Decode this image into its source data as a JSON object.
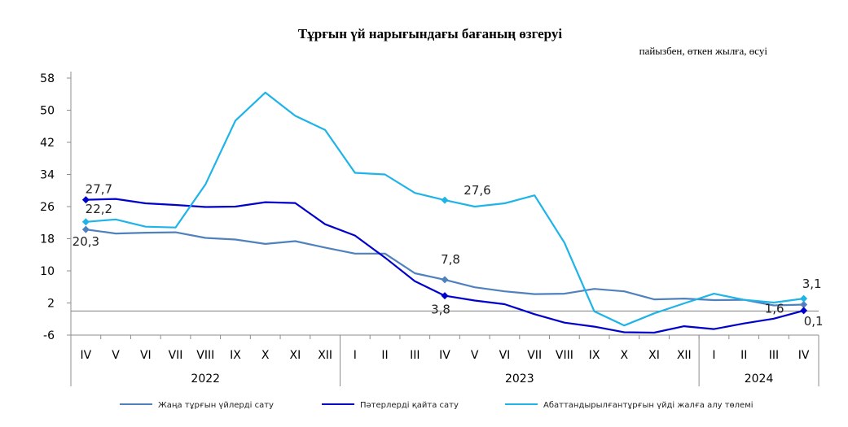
{
  "chart_data": {
    "type": "line",
    "title": "Тұрғын үй нарығындағы бағаның өзгеруі",
    "subtitle": "пайызбен, өткен жылға, өсуі",
    "ylim": [
      -6,
      58
    ],
    "yticks": [
      -6,
      2,
      10,
      18,
      26,
      34,
      42,
      50,
      58
    ],
    "baseline": 0,
    "categories": [
      "IV",
      "V",
      "VI",
      "VII",
      "VIII",
      "IX",
      "X",
      "XI",
      "XII",
      "I",
      "II",
      "III",
      "IV",
      "V",
      "VI",
      "VII",
      "VIII",
      "IX",
      "X",
      "XI",
      "XII",
      "I",
      "II",
      "III",
      "IV"
    ],
    "years": [
      {
        "label": "2022",
        "start": 0,
        "end": 8
      },
      {
        "label": "2023",
        "start": 9,
        "end": 20
      },
      {
        "label": "2024",
        "start": 21,
        "end": 24
      }
    ],
    "series": [
      {
        "name": "Жаңа тұрғын үйлерді сату",
        "color": "#4f81bd",
        "values": [
          20.3,
          19.3,
          19.5,
          19.6,
          18.2,
          17.8,
          16.7,
          17.4,
          15.8,
          14.3,
          14.3,
          9.4,
          7.8,
          5.9,
          4.9,
          4.2,
          4.3,
          5.5,
          4.9,
          2.9,
          3.1,
          2.7,
          2.8,
          1.4,
          1.6
        ],
        "labels": [
          {
            "index": 0,
            "text": "20,3"
          },
          {
            "index": 12,
            "text": "7,8"
          },
          {
            "index": 24,
            "text": "1,6"
          }
        ]
      },
      {
        "name": "Пәтерлерді қайта сату",
        "color": "#0000cc",
        "values": [
          27.7,
          27.9,
          26.8,
          26.4,
          25.9,
          26.0,
          27.1,
          26.9,
          21.6,
          18.8,
          13.3,
          7.4,
          3.8,
          2.6,
          1.7,
          -0.8,
          -2.9,
          -3.9,
          -5.3,
          -5.4,
          -3.8,
          -4.5,
          -3.1,
          -1.9,
          0.1
        ],
        "labels": [
          {
            "index": 0,
            "text": "27,7"
          },
          {
            "index": 12,
            "text": "3,8"
          },
          {
            "index": 24,
            "text": "0,1"
          }
        ]
      },
      {
        "name": "Абаттандырылғантұрғын үйді жалға алу төлемі",
        "color": "#1eb4e8",
        "values": [
          22.2,
          22.8,
          21.0,
          20.8,
          31.5,
          47.4,
          54.4,
          48.6,
          45.1,
          34.4,
          34.0,
          29.4,
          27.6,
          26.0,
          26.8,
          28.8,
          17.0,
          -0.1,
          -3.6,
          -0.6,
          1.9,
          4.3,
          2.8,
          2.1,
          3.1
        ],
        "labels": [
          {
            "index": 0,
            "text": "22,2"
          },
          {
            "index": 12,
            "text": "27,6"
          },
          {
            "index": 24,
            "text": "3,1"
          }
        ]
      }
    ],
    "grid": false,
    "legend_position": "bottom"
  }
}
